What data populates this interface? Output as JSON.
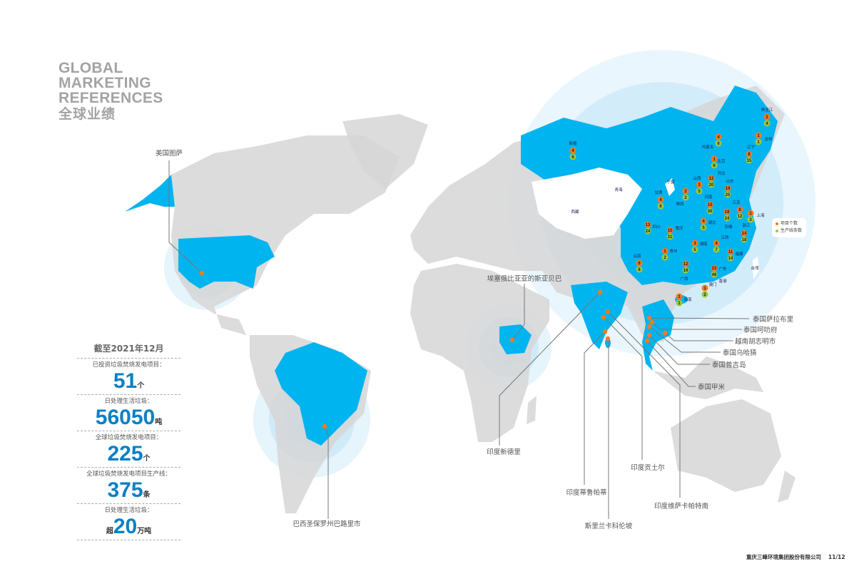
{
  "title": {
    "en_line1": "GLOBAL",
    "en_line2": "MARKETING",
    "en_line3": "REFERENCES",
    "cn": "全球业绩"
  },
  "stats": {
    "heading": "截至2021年12月",
    "items": [
      {
        "label": "已投资垃圾焚烧发电项目：",
        "prefix": "",
        "value": "51",
        "unit": "个"
      },
      {
        "label": "日处理生活垃圾：",
        "prefix": "",
        "value": "56050",
        "unit": "吨"
      },
      {
        "label": "全球垃圾焚烧发电项目：",
        "prefix": "",
        "value": "225",
        "unit": "个"
      },
      {
        "label": "全球垃圾焚烧发电项目生产线：",
        "prefix": "",
        "value": "375",
        "unit": "条"
      },
      {
        "label": "日处理生活垃圾：",
        "prefix": "超",
        "value": "20",
        "unit": "万吨"
      }
    ]
  },
  "legend": {
    "projects": "项目个数",
    "lines": "生产线条数"
  },
  "colors": {
    "highlight": "#00b4ef",
    "land": "#d9d9d9",
    "projects": "#f47a20",
    "lines": "#9dc93b",
    "stat_number": "#0a80c4"
  },
  "overseas_sites": [
    "美国图萨",
    "埃塞俄比亚亚的斯亚贝巴",
    "印度新德里",
    "巴西圣保罗州巴路里市",
    "印度蒂鲁帕蒂",
    "斯里兰卡科伦坡",
    "印度贡土尔",
    "印度维萨卡帕特南",
    "泰国萨拉布里",
    "泰国呵叻府",
    "越南胡志明市",
    "泰国乌哈猜",
    "泰国普吉岛",
    "泰国甲米"
  ],
  "provinces": [
    {
      "name": "新疆",
      "projects": "4",
      "lines": "6"
    },
    {
      "name": "黑龙江",
      "projects": "2",
      "lines": "4"
    },
    {
      "name": "吉林",
      "projects": "1",
      "lines": "1"
    },
    {
      "name": "辽宁",
      "projects": "8",
      "lines": "15"
    },
    {
      "name": "内蒙古",
      "projects": "4",
      "lines": "6"
    },
    {
      "name": "北京",
      "projects": "1",
      "lines": "6"
    },
    {
      "name": "河北",
      "projects": "12",
      "lines": "20"
    },
    {
      "name": "山西",
      "projects": "3",
      "lines": "5"
    },
    {
      "name": "山东",
      "projects": "19",
      "lines": "25"
    },
    {
      "name": "陕西",
      "projects": "2",
      "lines": "2"
    },
    {
      "name": "甘肃",
      "projects": "4",
      "lines": "6"
    },
    {
      "name": "河南",
      "projects": "15",
      "lines": "30"
    },
    {
      "name": "江苏",
      "projects": "8",
      "lines": "12"
    },
    {
      "name": "上海",
      "projects": "1",
      "lines": "3"
    },
    {
      "name": "安徽",
      "projects": "19",
      "lines": "24"
    },
    {
      "name": "湖北",
      "projects": "4",
      "lines": "5"
    },
    {
      "name": "四川",
      "projects": "13",
      "lines": "24"
    },
    {
      "name": "重庆",
      "projects": "15",
      "lines": "31"
    },
    {
      "name": "浙江",
      "projects": "14",
      "lines": "18"
    },
    {
      "name": "湖南",
      "projects": "3",
      "lines": "5"
    },
    {
      "name": "江西",
      "projects": "4",
      "lines": "7"
    },
    {
      "name": "福建",
      "projects": "11",
      "lines": "14"
    },
    {
      "name": "贵州",
      "projects": "1",
      "lines": "2"
    },
    {
      "name": "云南",
      "projects": "6",
      "lines": "8"
    },
    {
      "name": "广西",
      "projects": "12",
      "lines": "19"
    },
    {
      "name": "广东",
      "projects": "23",
      "lines": "46"
    },
    {
      "name": "澳门",
      "projects": "1",
      "lines": "2"
    },
    {
      "name": "海南",
      "projects": "1",
      "lines": "1"
    }
  ],
  "other_regions": [
    "青海",
    "西藏",
    "宁夏",
    "香港",
    "台湾"
  ],
  "footer": {
    "company": "重庆三峰环境集团股份有限公司",
    "page": "11/12"
  }
}
